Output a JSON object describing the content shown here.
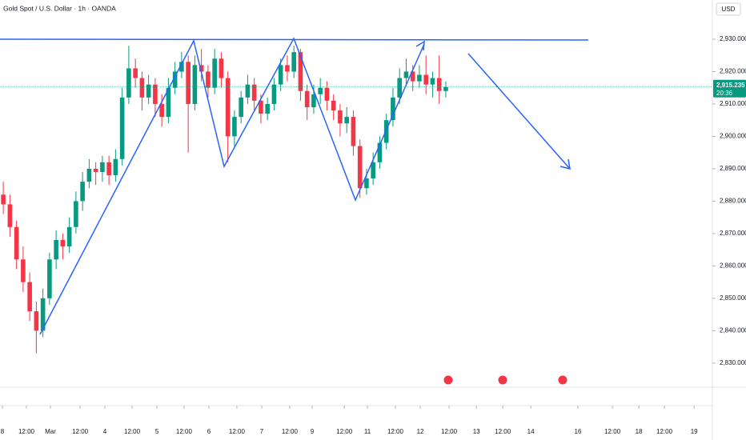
{
  "chart_data": {
    "type": "candlestick",
    "title": "Gold Spot / U.S. Dollar · 1h · OANDA",
    "currency": "USD",
    "up_color": "#089981",
    "down_color": "#f23645",
    "grid": false,
    "x": [
      1.5,
      4.5,
      7.5,
      10.5,
      13.5,
      16.5,
      19.5,
      22.5,
      25.5,
      28.5,
      31.5,
      34.5,
      37.5,
      40.5,
      43.5,
      46.5,
      49.5,
      52.5,
      55.5,
      58.5,
      61.5,
      64.5,
      67.5,
      70.5,
      73.5,
      76.5,
      79.5,
      82.5,
      85.5,
      88.5,
      91.5,
      94.5,
      97.5,
      100.5,
      103.5,
      106.5,
      109.5,
      112.5,
      115.5,
      118.5,
      121.5,
      124.5,
      127.5,
      130.5,
      133.5,
      136.5,
      139.5,
      142.5,
      145.5,
      148.5,
      151.5,
      154.5,
      157.5,
      160.5,
      163.5,
      166.5,
      169.5,
      172.5,
      175.5,
      178.5,
      181.5,
      184.5,
      187.5,
      190.5,
      193.5,
      196.5,
      199.5,
      202.5
    ],
    "ohlc": [
      [
        2882,
        2886,
        2876,
        2879
      ],
      [
        2879,
        2882,
        2869,
        2872
      ],
      [
        2872,
        2874,
        2859,
        2862
      ],
      [
        2862,
        2866,
        2852,
        2855
      ],
      [
        2855,
        2858,
        2843,
        2846
      ],
      [
        2846,
        2849,
        2833,
        2840
      ],
      [
        2840,
        2853,
        2838,
        2850
      ],
      [
        2850,
        2864,
        2848,
        2862
      ],
      [
        2862,
        2871,
        2859,
        2868
      ],
      [
        2868,
        2870,
        2862,
        2866
      ],
      [
        2866,
        2875,
        2864,
        2872
      ],
      [
        2872,
        2883,
        2870,
        2880
      ],
      [
        2880,
        2889,
        2877,
        2886
      ],
      [
        2886,
        2893,
        2884,
        2890
      ],
      [
        2890,
        2892,
        2885,
        2889
      ],
      [
        2889,
        2894,
        2886,
        2892
      ],
      [
        2892,
        2894,
        2885,
        2888
      ],
      [
        2888,
        2896,
        2886,
        2893
      ],
      [
        2893,
        2915,
        2891,
        2912
      ],
      [
        2912,
        2928,
        2910,
        2921
      ],
      [
        2921,
        2924,
        2915,
        2918
      ],
      [
        2918,
        2920,
        2908,
        2912
      ],
      [
        2912,
        2919,
        2910,
        2916
      ],
      [
        2916,
        2918,
        2906,
        2910
      ],
      [
        2910,
        2913,
        2903,
        2906
      ],
      [
        2906,
        2918,
        2904,
        2915
      ],
      [
        2915,
        2923,
        2913,
        2920
      ],
      [
        2920,
        2926,
        2918,
        2923
      ],
      [
        2923,
        2925,
        2895,
        2910
      ],
      [
        2910,
        2925,
        2908,
        2922
      ],
      [
        2922,
        2927,
        2917,
        2920
      ],
      [
        2920,
        2922,
        2912,
        2915
      ],
      [
        2915,
        2927,
        2913,
        2924
      ],
      [
        2924,
        2926,
        2915,
        2918
      ],
      [
        2918,
        2920,
        2892,
        2900
      ],
      [
        2900,
        2908,
        2897,
        2906
      ],
      [
        2906,
        2914,
        2904,
        2912
      ],
      [
        2912,
        2919,
        2910,
        2916
      ],
      [
        2916,
        2918,
        2908,
        2911
      ],
      [
        2911,
        2913,
        2904,
        2907
      ],
      [
        2907,
        2912,
        2905,
        2910
      ],
      [
        2910,
        2918,
        2908,
        2916
      ],
      [
        2916,
        2924,
        2914,
        2922
      ],
      [
        2922,
        2925,
        2917,
        2920
      ],
      [
        2920,
        2928,
        2918,
        2926
      ],
      [
        2926,
        2927,
        2911,
        2914
      ],
      [
        2914,
        2916,
        2905,
        2909
      ],
      [
        2909,
        2916,
        2907,
        2913
      ],
      [
        2913,
        2918,
        2910,
        2915
      ],
      [
        2915,
        2917,
        2908,
        2911
      ],
      [
        2911,
        2913,
        2905,
        2908
      ],
      [
        2908,
        2910,
        2900,
        2904
      ],
      [
        2904,
        2909,
        2901,
        2906
      ],
      [
        2906,
        2908,
        2894,
        2897
      ],
      [
        2897,
        2899,
        2881,
        2884
      ],
      [
        2884,
        2890,
        2882,
        2887
      ],
      [
        2887,
        2895,
        2885,
        2892
      ],
      [
        2892,
        2900,
        2890,
        2898
      ],
      [
        2898,
        2907,
        2896,
        2905
      ],
      [
        2905,
        2915,
        2903,
        2912
      ],
      [
        2912,
        2921,
        2910,
        2918
      ],
      [
        2918,
        2924,
        2916,
        2920
      ],
      [
        2920,
        2922,
        2914,
        2917
      ],
      [
        2917,
        2922,
        2915,
        2919
      ],
      [
        2919,
        2925,
        2913,
        2916
      ],
      [
        2916,
        2920,
        2912,
        2918
      ],
      [
        2918,
        2925,
        2910,
        2914
      ],
      [
        2914,
        2917,
        2912,
        2915.235
      ]
    ],
    "last_price": {
      "value": 2915.235,
      "label": "2,915.235"
    },
    "countdown": "20:36",
    "xlim": [
      0,
      323.6
    ],
    "xticks": [
      {
        "value": 1.1,
        "label": "8"
      },
      {
        "value": 12,
        "label": "12:00"
      },
      {
        "value": 22.9,
        "label": "Mar"
      },
      {
        "value": 36.4,
        "label": "12:00"
      },
      {
        "value": 47.6,
        "label": "4"
      },
      {
        "value": 60,
        "label": "12:00"
      },
      {
        "value": 71.3,
        "label": "5"
      },
      {
        "value": 83.6,
        "label": "12:00"
      },
      {
        "value": 94.9,
        "label": "6"
      },
      {
        "value": 107.6,
        "label": "12:00"
      },
      {
        "value": 118.9,
        "label": "7"
      },
      {
        "value": 131.6,
        "label": "12:00"
      },
      {
        "value": 141.8,
        "label": "9"
      },
      {
        "value": 156.4,
        "label": "12:00"
      },
      {
        "value": 166.9,
        "label": "11"
      },
      {
        "value": 179.6,
        "label": "12:00"
      },
      {
        "value": 190.9,
        "label": "12"
      },
      {
        "value": 204,
        "label": "12:00"
      },
      {
        "value": 216.4,
        "label": "13"
      },
      {
        "value": 228.4,
        "label": "12:00"
      },
      {
        "value": 241.1,
        "label": "14"
      },
      {
        "value": 262.5,
        "label": "16"
      },
      {
        "value": 278.2,
        "label": "12:00"
      },
      {
        "value": 290.2,
        "label": "18"
      },
      {
        "value": 301.8,
        "label": "12:00"
      },
      {
        "value": 315.3,
        "label": "19"
      }
    ],
    "ylim": [
      2822.3,
      2942.1
    ],
    "yticks": [
      {
        "value": 2830,
        "label": "2,830.000"
      },
      {
        "value": 2840,
        "label": "2,840.000"
      },
      {
        "value": 2850,
        "label": "2,850.000"
      },
      {
        "value": 2860,
        "label": "2,860.000"
      },
      {
        "value": 2870,
        "label": "2,870.000"
      },
      {
        "value": 2880,
        "label": "2,880.000"
      },
      {
        "value": 2890,
        "label": "2,890.000"
      },
      {
        "value": 2900,
        "label": "2,900.000"
      },
      {
        "value": 2910,
        "label": "2,910.000"
      },
      {
        "value": 2920,
        "label": "2,920.000"
      },
      {
        "value": 2930,
        "label": "2,930.000"
      }
    ]
  }
}
